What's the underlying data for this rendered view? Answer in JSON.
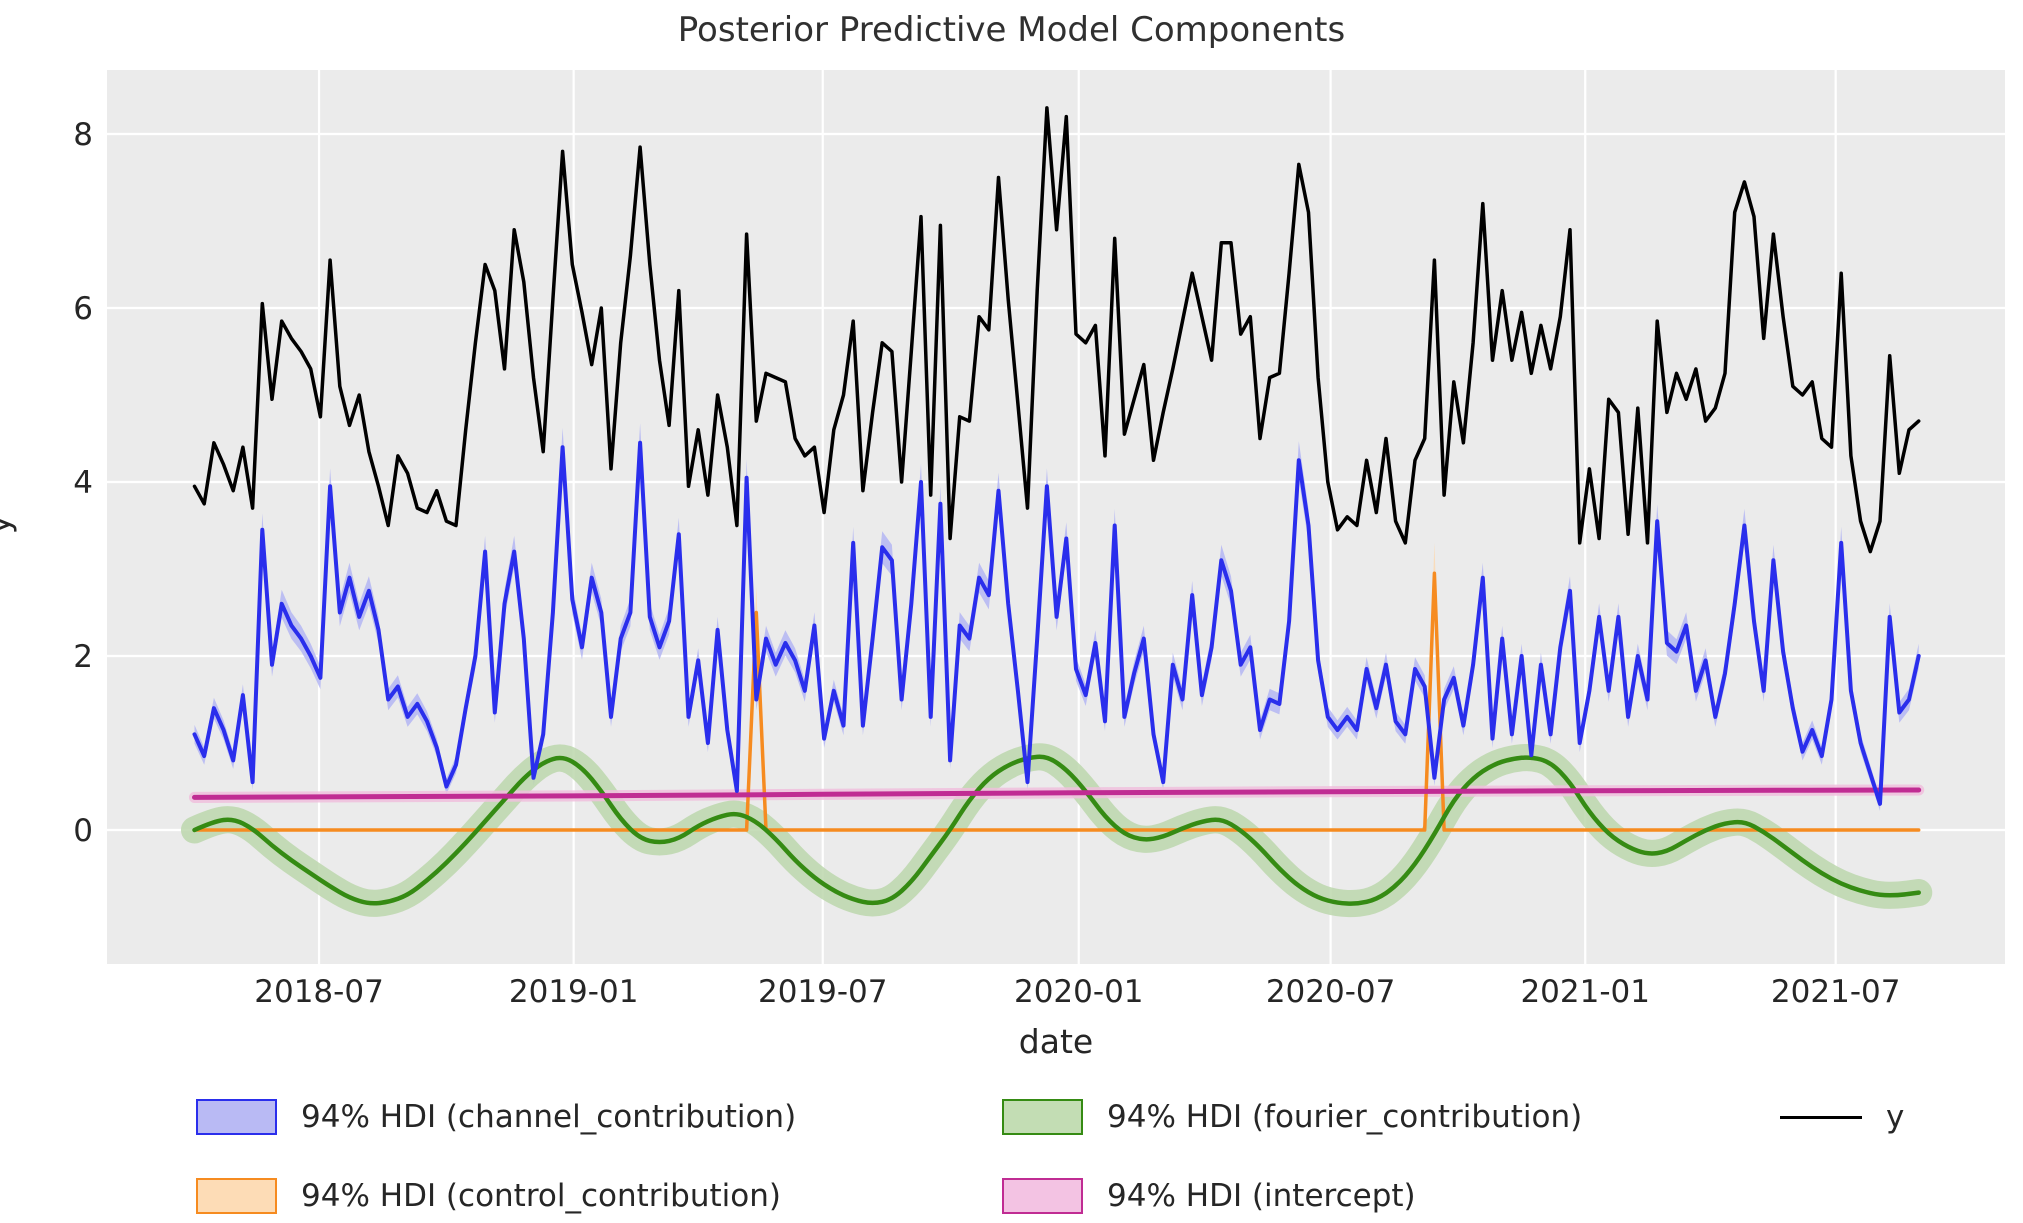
{
  "title": "Posterior Predictive Model Components",
  "axes": {
    "xlabel": "date",
    "ylabel": "y",
    "yticks": [
      0,
      2,
      4,
      6,
      8
    ],
    "xticks": [
      {
        "label": "2018-07",
        "week": 12.857
      },
      {
        "label": "2019-01",
        "week": 39.143
      },
      {
        "label": "2019-07",
        "week": 64.857
      },
      {
        "label": "2020-01",
        "week": 91.286
      },
      {
        "label": "2020-07",
        "week": 117.286
      },
      {
        "label": "2021-01",
        "week": 143.571
      },
      {
        "label": "2021-07",
        "week": 169.429
      }
    ],
    "ylim": [
      -1.55,
      8.74
    ],
    "grid": true,
    "plot_bg": "#ebebeb",
    "grid_color": "#ffffff"
  },
  "legend": {
    "items": [
      {
        "label": "94% HDI (channel_contribution)",
        "fill": "#b9baf4",
        "edge": "#2a2eec",
        "kind": "patch"
      },
      {
        "label": "94% HDI (control_contribution)",
        "fill": "#fddcb6",
        "edge": "#f68b20",
        "kind": "patch"
      },
      {
        "label": "94% HDI (fourier_contribution)",
        "fill": "#c3ddb4",
        "edge": "#358b13",
        "kind": "patch"
      },
      {
        "label": "94% HDI (intercept)",
        "fill": "#f3c3e3",
        "edge": "#c02c93",
        "kind": "patch"
      },
      {
        "label": "y",
        "edge": "#000000",
        "kind": "line"
      }
    ]
  },
  "chart_data": {
    "type": "line",
    "start_date": "2018-04-02",
    "end_date": "2021-08-30",
    "freq_days": 7,
    "n_points": 179,
    "series": [
      {
        "name": "channel_contribution",
        "color": "#2a2eec",
        "band_color": "#b4b6f3",
        "width": 4,
        "z": 4,
        "band": {
          "base": 0.07,
          "scale": 0.035
        },
        "weekly_values": [
          1.1,
          0.85,
          1.4,
          1.15,
          0.8,
          1.55,
          0.55,
          3.45,
          1.9,
          2.6,
          2.35,
          2.2,
          2.0,
          1.75,
          3.95,
          2.5,
          2.9,
          2.45,
          2.75,
          2.3,
          1.5,
          1.65,
          1.3,
          1.45,
          1.25,
          0.95,
          0.5,
          0.75,
          1.4,
          2.0,
          3.2,
          1.35,
          2.6,
          3.2,
          2.2,
          0.6,
          1.1,
          2.5,
          4.4,
          2.65,
          2.1,
          2.9,
          2.5,
          1.3,
          2.2,
          2.5,
          4.45,
          2.45,
          2.1,
          2.4,
          3.4,
          1.3,
          1.95,
          1.0,
          2.3,
          1.15,
          0.45,
          4.05,
          1.5,
          2.2,
          1.9,
          2.15,
          1.95,
          1.6,
          2.35,
          1.05,
          1.6,
          1.2,
          3.3,
          1.2,
          2.2,
          3.25,
          3.1,
          1.5,
          2.6,
          4.0,
          1.3,
          3.75,
          0.8,
          2.35,
          2.2,
          2.9,
          2.7,
          3.9,
          2.6,
          1.6,
          0.55,
          2.2,
          3.95,
          2.45,
          3.35,
          1.85,
          1.55,
          2.15,
          1.25,
          3.5,
          1.3,
          1.8,
          2.2,
          1.1,
          0.55,
          1.9,
          1.5,
          2.7,
          1.55,
          2.1,
          3.1,
          2.75,
          1.9,
          2.1,
          1.15,
          1.5,
          1.45,
          2.4,
          4.25,
          3.5,
          1.95,
          1.3,
          1.15,
          1.3,
          1.15,
          1.85,
          1.4,
          1.9,
          1.25,
          1.1,
          1.85,
          1.65,
          0.6,
          1.5,
          1.75,
          1.2,
          1.9,
          2.9,
          1.05,
          2.2,
          1.1,
          2.0,
          0.86,
          1.9,
          1.1,
          2.1,
          2.75,
          1.0,
          1.6,
          2.45,
          1.6,
          2.45,
          1.3,
          2.0,
          1.5,
          3.55,
          2.15,
          2.05,
          2.35,
          1.6,
          1.95,
          1.3,
          1.8,
          2.6,
          3.5,
          2.4,
          1.6,
          3.1,
          2.05,
          1.4,
          0.9,
          1.15,
          0.85,
          1.5,
          3.3,
          1.6,
          1.0,
          0.65,
          0.3,
          2.45,
          1.35,
          1.5,
          2.0
        ]
      },
      {
        "name": "control_contribution",
        "color": "#f68b20",
        "band_color": "#fbd9b3",
        "width": 3.5,
        "z": 1,
        "band": {
          "base": 0,
          "scale": 0.12
        },
        "points": [
          [
            0,
            0
          ],
          [
            57,
            0
          ],
          [
            58,
            2.5
          ],
          [
            59,
            0
          ],
          [
            127,
            0
          ],
          [
            128,
            2.95
          ],
          [
            129,
            0
          ],
          [
            178,
            0
          ]
        ]
      },
      {
        "name": "fourier_contribution",
        "color": "#358b13",
        "band_color": "#bcd7ad",
        "width": 4.5,
        "z": 2,
        "smooth": true,
        "band": {
          "base": 0.13,
          "scale": 0
        },
        "week_step": 2,
        "step_values": [
          0.0,
          0.1,
          0.13,
          0.02,
          -0.18,
          -0.35,
          -0.5,
          -0.65,
          -0.78,
          -0.85,
          -0.83,
          -0.75,
          -0.58,
          -0.38,
          -0.15,
          0.1,
          0.35,
          0.6,
          0.78,
          0.85,
          0.72,
          0.45,
          0.12,
          -0.1,
          -0.15,
          -0.1,
          0.05,
          0.15,
          0.2,
          0.1,
          -0.1,
          -0.35,
          -0.55,
          -0.7,
          -0.8,
          -0.85,
          -0.8,
          -0.6,
          -0.3,
          0.0,
          0.35,
          0.6,
          0.75,
          0.83,
          0.85,
          0.7,
          0.45,
          0.15,
          -0.05,
          -0.12,
          -0.08,
          0.02,
          0.1,
          0.13,
          0.0,
          -0.2,
          -0.45,
          -0.65,
          -0.78,
          -0.84,
          -0.85,
          -0.8,
          -0.65,
          -0.4,
          -0.05,
          0.35,
          0.6,
          0.75,
          0.82,
          0.84,
          0.78,
          0.55,
          0.2,
          -0.05,
          -0.2,
          -0.28,
          -0.25,
          -0.12,
          0.0,
          0.08,
          0.1,
          -0.02,
          -0.18,
          -0.35,
          -0.5,
          -0.62,
          -0.7,
          -0.75,
          -0.75,
          -0.72
        ]
      },
      {
        "name": "intercept",
        "color": "#c02c93",
        "band_color": "#f0bfdd",
        "width": 5,
        "z": 3,
        "smooth": true,
        "band": {
          "base": 0.035,
          "scale": 0
        },
        "points": [
          [
            0,
            0.375
          ],
          [
            26,
            0.385
          ],
          [
            52,
            0.4
          ],
          [
            78,
            0.42
          ],
          [
            104,
            0.435
          ],
          [
            130,
            0.445
          ],
          [
            156,
            0.455
          ],
          [
            178,
            0.46
          ]
        ]
      },
      {
        "name": "y",
        "color": "#000000",
        "width": 3.5,
        "z": 5,
        "weekly_values": [
          3.95,
          3.75,
          4.45,
          4.2,
          3.9,
          4.4,
          3.7,
          6.05,
          4.95,
          5.85,
          5.65,
          5.5,
          5.3,
          4.75,
          6.55,
          5.1,
          4.65,
          5.0,
          4.35,
          3.95,
          3.5,
          4.3,
          4.1,
          3.7,
          3.65,
          3.9,
          3.55,
          3.5,
          4.6,
          5.6,
          6.5,
          6.2,
          5.3,
          6.9,
          6.3,
          5.2,
          4.35,
          6.1,
          7.8,
          6.5,
          5.95,
          5.35,
          6.0,
          4.15,
          5.6,
          6.6,
          7.85,
          6.5,
          5.4,
          4.65,
          6.2,
          3.95,
          4.6,
          3.85,
          5.0,
          4.4,
          3.5,
          6.85,
          4.7,
          5.25,
          5.2,
          5.15,
          4.5,
          4.3,
          4.4,
          3.65,
          4.6,
          5.0,
          5.85,
          3.9,
          4.8,
          5.6,
          5.5,
          4.0,
          5.5,
          7.05,
          3.85,
          6.95,
          3.35,
          4.75,
          4.7,
          5.9,
          5.75,
          7.5,
          6.1,
          4.9,
          3.7,
          6.2,
          8.3,
          6.9,
          8.2,
          5.7,
          5.6,
          5.8,
          4.3,
          6.8,
          4.55,
          4.95,
          5.35,
          4.25,
          4.8,
          5.3,
          5.85,
          6.4,
          5.9,
          5.4,
          6.75,
          6.75,
          5.7,
          5.9,
          4.5,
          5.2,
          5.25,
          6.4,
          7.65,
          7.1,
          5.2,
          4.0,
          3.45,
          3.6,
          3.5,
          4.25,
          3.65,
          4.5,
          3.55,
          3.3,
          4.25,
          4.5,
          6.55,
          3.85,
          5.15,
          4.45,
          5.6,
          7.2,
          5.4,
          6.2,
          5.4,
          5.95,
          5.25,
          5.8,
          5.3,
          5.9,
          6.9,
          3.3,
          4.15,
          3.35,
          4.95,
          4.8,
          3.4,
          4.85,
          3.3,
          5.85,
          4.8,
          5.25,
          4.95,
          5.3,
          4.7,
          4.85,
          5.25,
          7.1,
          7.45,
          7.05,
          5.65,
          6.85,
          5.9,
          5.1,
          5.0,
          5.15,
          4.5,
          4.4,
          6.4,
          4.3,
          3.55,
          3.2,
          3.55,
          5.45,
          4.1,
          4.6,
          4.7
        ]
      }
    ]
  }
}
